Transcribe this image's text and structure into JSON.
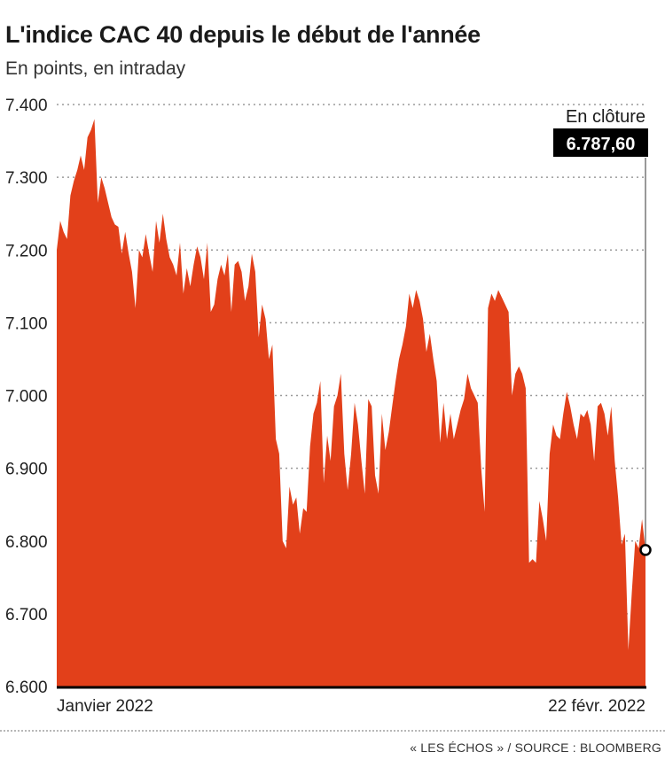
{
  "header": {
    "title": "L'indice CAC 40 depuis le début de l'année",
    "subtitle": "En points, en intraday"
  },
  "footer": {
    "source": "« LES ÉCHOS » / SOURCE : BLOOMBERG"
  },
  "colors": {
    "area": "#e2401a",
    "grid": "#9a9a9a",
    "baseline": "#000000",
    "label_box": "#000000"
  },
  "chart_data": {
    "type": "area",
    "title": "L'indice CAC 40 depuis le début de l'année",
    "subtitle": "En points, en intraday",
    "xlabel": "",
    "ylabel": "",
    "ylim": [
      6600,
      7400
    ],
    "yticks": [
      7400,
      7300,
      7200,
      7100,
      7000,
      6900,
      6800,
      6700,
      6600
    ],
    "ytick_labels": [
      "7.400",
      "7.300",
      "7.200",
      "7.100",
      "7.000",
      "6.900",
      "6.800",
      "6.700",
      "6.600"
    ],
    "x_labels": [
      "Janvier 2022",
      "22 févr. 2022"
    ],
    "grid": true,
    "annotation": {
      "label": "En clôture",
      "value_label": "6.787,60",
      "value": 6787.6
    },
    "values": [
      7200,
      7240,
      7225,
      7215,
      7275,
      7295,
      7310,
      7330,
      7310,
      7355,
      7365,
      7380,
      7265,
      7300,
      7285,
      7265,
      7245,
      7235,
      7232,
      7195,
      7225,
      7195,
      7170,
      7120,
      7200,
      7190,
      7222,
      7195,
      7170,
      7240,
      7210,
      7250,
      7215,
      7190,
      7180,
      7165,
      7210,
      7140,
      7175,
      7150,
      7180,
      7205,
      7190,
      7160,
      7210,
      7115,
      7125,
      7160,
      7180,
      7165,
      7195,
      7115,
      7180,
      7185,
      7170,
      7130,
      7150,
      7195,
      7170,
      7080,
      7125,
      7105,
      7050,
      7070,
      6940,
      6920,
      6800,
      6790,
      6875,
      6850,
      6860,
      6810,
      6845,
      6840,
      6930,
      6975,
      6990,
      7020,
      6880,
      6945,
      6910,
      6985,
      7000,
      7030,
      6920,
      6870,
      6920,
      6990,
      6960,
      6910,
      6865,
      6995,
      6985,
      6890,
      6865,
      6975,
      6925,
      6950,
      6985,
      7020,
      7050,
      7070,
      7095,
      7140,
      7120,
      7145,
      7130,
      7105,
      7060,
      7085,
      7050,
      7020,
      6935,
      6990,
      6940,
      6975,
      6940,
      6960,
      6980,
      6995,
      7030,
      7010,
      7000,
      6990,
      6900,
      6840,
      7120,
      7140,
      7130,
      7145,
      7135,
      7125,
      7115,
      7000,
      7030,
      7040,
      7030,
      7010,
      6770,
      6775,
      6770,
      6855,
      6830,
      6800,
      6920,
      6960,
      6945,
      6940,
      6975,
      7005,
      6985,
      6960,
      6940,
      6975,
      6970,
      6980,
      6960,
      6910,
      6985,
      6990,
      6975,
      6945,
      6985,
      6910,
      6860,
      6795,
      6810,
      6650,
      6730,
      6800,
      6790,
      6830,
      6787.6
    ]
  }
}
